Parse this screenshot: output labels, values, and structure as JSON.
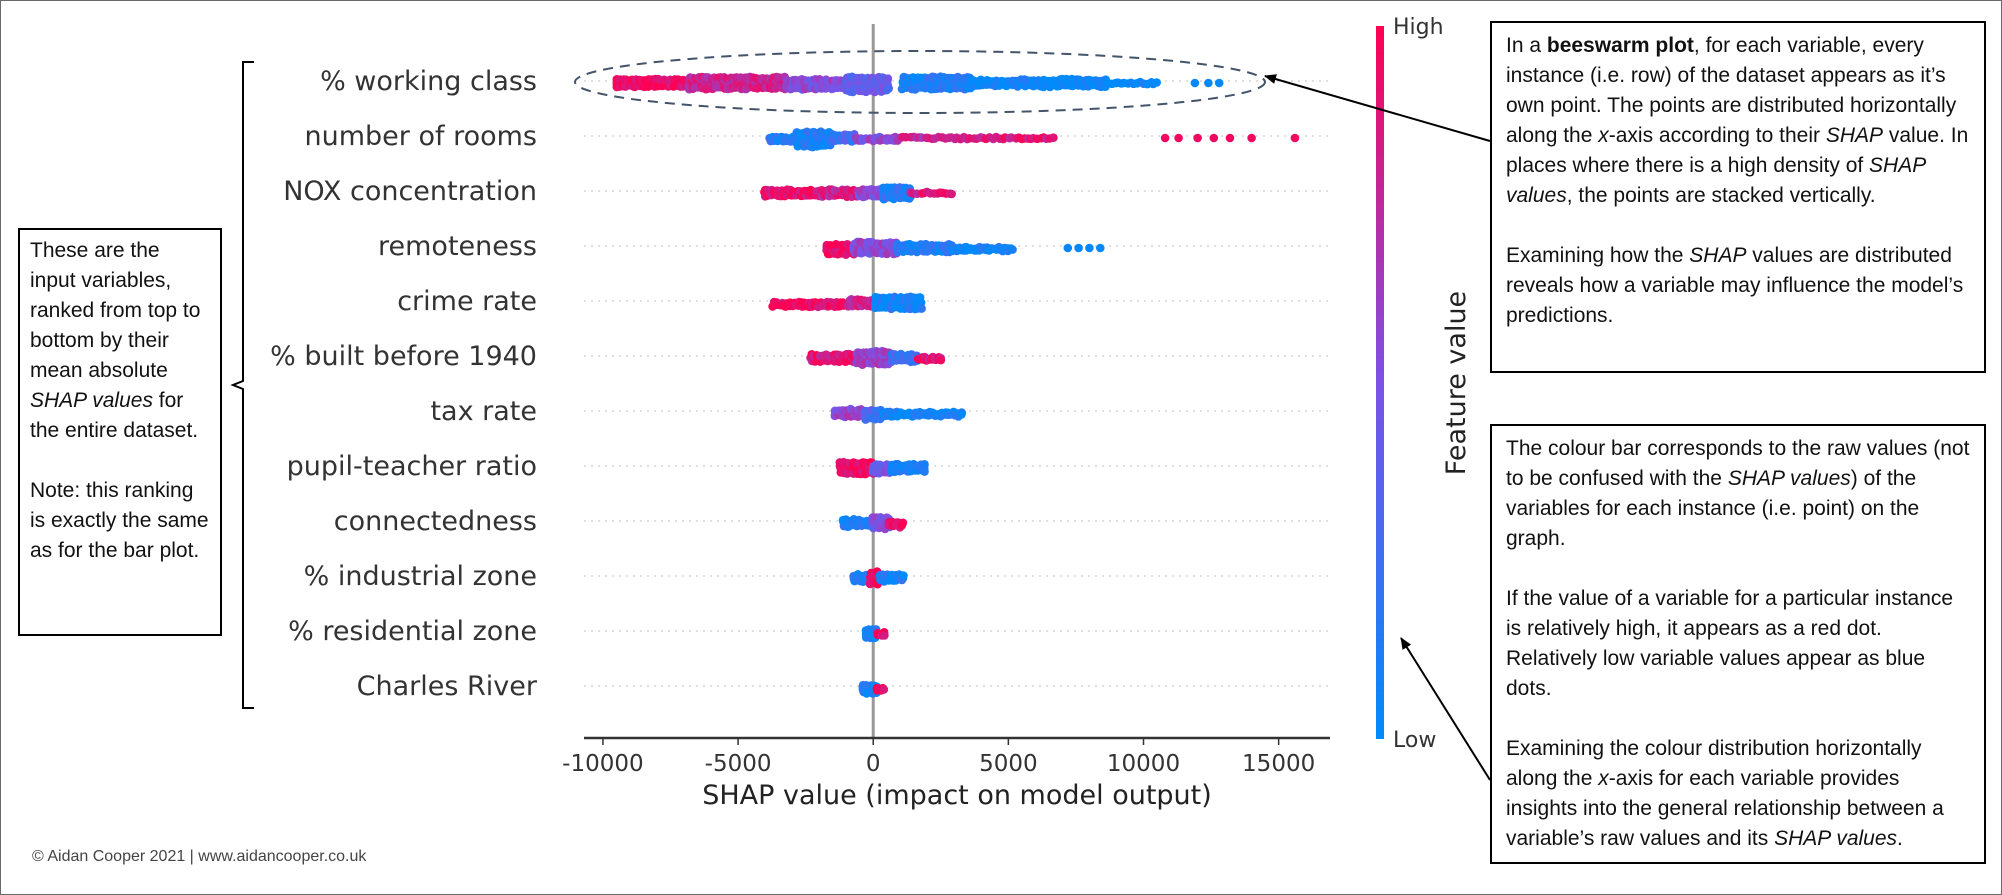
{
  "chart_data": {
    "type": "beeswarm",
    "xlabel": "SHAP value (impact on model output)",
    "ylabel": "",
    "xlim": [
      -10700,
      16900
    ],
    "xticks": [
      -10000,
      -5000,
      0,
      5000,
      10000,
      15000
    ],
    "xtick_labels": [
      "-10000",
      "-5000",
      "0",
      "5000",
      "10000",
      "15000"
    ],
    "features": [
      "% working class",
      "number of rooms",
      "NOX concentration",
      "remoteness",
      "crime rate",
      "% built before 1940",
      "tax rate",
      "pupil-teacher ratio",
      "connectedness",
      "% industrial zone",
      "% residential zone",
      "Charles River"
    ],
    "distributions": [
      {
        "segments": [
          [
            -9500,
            -6800,
            0.95,
            0.55
          ],
          [
            -6800,
            -3200,
            0.8,
            0.8
          ],
          [
            -3200,
            -1000,
            0.55,
            0.7
          ],
          [
            -1000,
            600,
            0.4,
            1.0
          ],
          [
            1100,
            3600,
            0.1,
            0.85
          ],
          [
            3600,
            6200,
            0.05,
            0.45
          ],
          [
            6200,
            8600,
            0.02,
            0.55
          ],
          [
            8600,
            10500,
            0.02,
            0.15
          ]
        ],
        "outliers": [
          [
            11900,
            0.02
          ],
          [
            12400,
            0.02
          ],
          [
            12800,
            0.02
          ]
        ]
      },
      {
        "segments": [
          [
            -3800,
            -2800,
            0.12,
            0.35
          ],
          [
            -2800,
            -1500,
            0.1,
            1.0
          ],
          [
            -1500,
            -600,
            0.25,
            0.5
          ],
          [
            -600,
            1000,
            0.55,
            0.25
          ],
          [
            1000,
            3000,
            0.75,
            0.15
          ],
          [
            3000,
            6700,
            0.85,
            0.12
          ]
        ],
        "outliers": [
          [
            10800,
            0.95
          ],
          [
            11300,
            0.95
          ],
          [
            12000,
            0.95
          ],
          [
            12600,
            0.95
          ],
          [
            13200,
            0.95
          ],
          [
            14000,
            0.95
          ],
          [
            15600,
            0.95
          ]
        ]
      },
      {
        "segments": [
          [
            -4000,
            -2000,
            0.9,
            0.45
          ],
          [
            -2000,
            -500,
            0.8,
            0.5
          ],
          [
            -500,
            400,
            0.55,
            0.55
          ],
          [
            400,
            1400,
            0.15,
            0.8
          ],
          [
            1400,
            3000,
            0.85,
            0.18
          ]
        ],
        "outliers": []
      },
      {
        "segments": [
          [
            -1700,
            -700,
            0.95,
            0.7
          ],
          [
            -700,
            900,
            0.55,
            0.8
          ],
          [
            900,
            3000,
            0.15,
            0.55
          ],
          [
            3000,
            5200,
            0.05,
            0.25
          ]
        ],
        "outliers": [
          [
            7200,
            0.03
          ],
          [
            7600,
            0.03
          ],
          [
            8000,
            0.03
          ],
          [
            8400,
            0.03
          ]
        ]
      },
      {
        "segments": [
          [
            -3700,
            -900,
            0.95,
            0.35
          ],
          [
            -900,
            100,
            0.8,
            0.5
          ],
          [
            100,
            1800,
            0.08,
            0.8
          ]
        ],
        "outliers": []
      },
      {
        "segments": [
          [
            -2300,
            -600,
            0.9,
            0.55
          ],
          [
            -600,
            700,
            0.6,
            0.9
          ],
          [
            700,
            1700,
            0.25,
            0.55
          ],
          [
            1700,
            2600,
            0.9,
            0.25
          ]
        ],
        "outliers": []
      },
      {
        "segments": [
          [
            -1400,
            -300,
            0.6,
            0.55
          ],
          [
            -300,
            400,
            0.3,
            0.7
          ],
          [
            400,
            3300,
            0.05,
            0.3
          ]
        ],
        "outliers": []
      },
      {
        "segments": [
          [
            -1200,
            0,
            0.95,
            0.8
          ],
          [
            0,
            700,
            0.45,
            0.6
          ],
          [
            700,
            1900,
            0.1,
            0.55
          ]
        ],
        "outliers": []
      },
      {
        "segments": [
          [
            -1100,
            0,
            0.12,
            0.5
          ],
          [
            0,
            600,
            0.5,
            0.75
          ],
          [
            600,
            1100,
            0.95,
            0.4
          ]
        ],
        "outliers": []
      },
      {
        "segments": [
          [
            -700,
            -100,
            0.1,
            0.5
          ],
          [
            -100,
            250,
            0.95,
            0.9
          ],
          [
            250,
            1100,
            0.1,
            0.45
          ]
        ],
        "outliers": []
      },
      {
        "segments": [
          [
            -250,
            200,
            0.05,
            0.65
          ],
          [
            200,
            500,
            0.95,
            0.3
          ]
        ],
        "outliers": []
      },
      {
        "segments": [
          [
            -350,
            150,
            0.05,
            0.6
          ],
          [
            150,
            500,
            0.95,
            0.25
          ]
        ],
        "outliers": []
      }
    ],
    "highlight_ellipse_feature": "% working class",
    "colorbar": {
      "high_label": "High",
      "low_label": "Low",
      "title": "Feature value",
      "high_color": "#ff0052",
      "mid_color": "#7c52e6",
      "low_color": "#008bfb"
    }
  },
  "notes": {
    "left": {
      "p1": [
        "These are the input variables, ranked from top to bottom by their mean absolute ",
        "SHAP values",
        " for the entire dataset."
      ],
      "p2": "Note: this ranking is exactly the same as for the bar plot."
    },
    "right_top": {
      "p1": [
        "In a ",
        "beeswarm plot",
        ", for each variable, every instance (i.e. row) of the dataset appears as it’s own point. The points are distributed horizontally along the ",
        "x",
        "-axis according to their ",
        "SHAP",
        " value. In places where there is a high density of ",
        "SHAP values",
        ", the points are stacked vertically."
      ],
      "p2": [
        "Examining how the ",
        "SHAP",
        " values are distributed reveals how a variable may influence the model’s predictions."
      ]
    },
    "right_bottom": {
      "p1": [
        "The colour bar corresponds to the raw values (not to be confused with the ",
        "SHAP values",
        ") of the variables for each instance (i.e. point) on the graph."
      ],
      "p2": "If the value of a variable for a particular instance is relatively high, it appears as a red dot. Relatively low variable values appear as blue dots.",
      "p3": [
        "Examining the colour distribution horizontally along the ",
        "x",
        "-axis for each variable provides insights into the general relationship between a variable’s raw values and its ",
        "SHAP values",
        "."
      ]
    }
  },
  "copyright": "© Aidan Cooper 2021 | www.aidancooper.co.uk"
}
